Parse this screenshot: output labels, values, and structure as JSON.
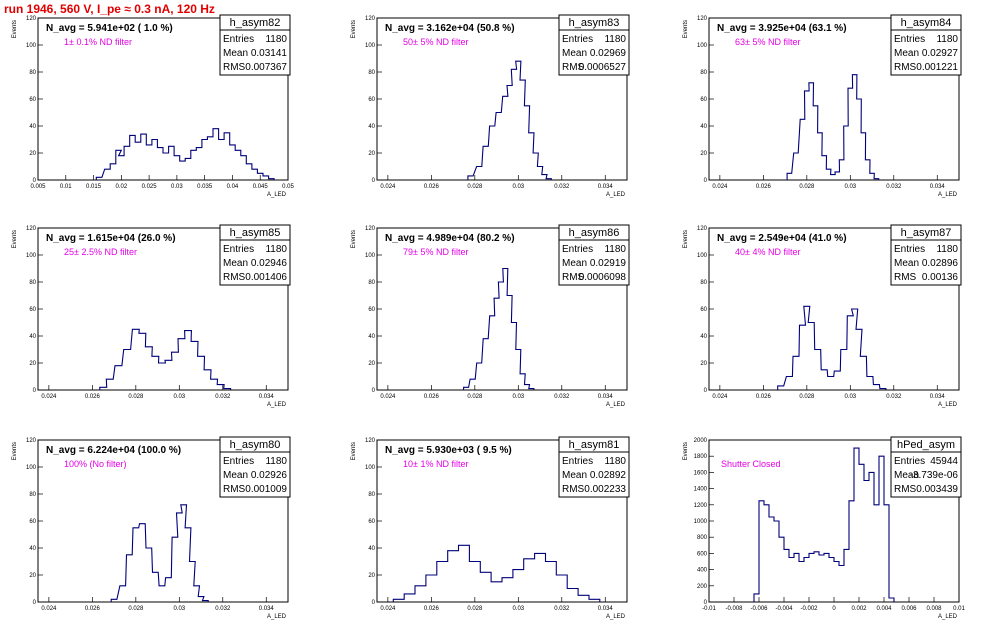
{
  "run_title": "run 1946,   560 V, I_pe ≈ 0.3 nA, 120 Hz",
  "ylabel": "Events",
  "xlabel": "A_LED",
  "stat_labels": {
    "entries": "Entries",
    "mean": "Mean",
    "rms": "RMS"
  },
  "chart_data": [
    {
      "type": "histogram",
      "name": "h_asym82",
      "headline": "N_avg = 5.941e+02 ( 1.0 %)",
      "filter": "1± 0.1% ND filter",
      "entries": "1180",
      "mean": "0.03141",
      "rms": "0.007367",
      "xlim": [
        0.005,
        0.05
      ],
      "ylim": [
        0,
        120
      ],
      "xticks": [
        "0.005",
        "0.01",
        "0.015",
        "0.02",
        "0.025",
        "0.03",
        "0.035",
        "0.04",
        "0.045",
        "0.05"
      ],
      "yticks": [
        "0",
        "20",
        "40",
        "60",
        "80",
        "100",
        "120"
      ],
      "x": [
        0.016,
        0.0175,
        0.0185,
        0.0195,
        0.02,
        0.021,
        0.022,
        0.023,
        0.024,
        0.025,
        0.026,
        0.027,
        0.028,
        0.029,
        0.03,
        0.031,
        0.032,
        0.033,
        0.034,
        0.035,
        0.036,
        0.037,
        0.038,
        0.039,
        0.04,
        0.041,
        0.042,
        0.043,
        0.044,
        0.045,
        0.046,
        0.047
      ],
      "values": [
        2,
        8,
        12,
        22,
        18,
        25,
        33,
        28,
        34,
        26,
        30,
        24,
        20,
        25,
        18,
        14,
        16,
        22,
        24,
        30,
        32,
        38,
        30,
        35,
        26,
        22,
        18,
        12,
        8,
        5,
        3,
        1
      ]
    },
    {
      "type": "histogram",
      "name": "h_asym83",
      "headline": "N_avg = 3.162e+04 (50.8 %)",
      "filter": "50± 5% ND filter",
      "entries": "1180",
      "mean": "0.02969",
      "rms": "0.0006527",
      "xlim": [
        0.0235,
        0.035
      ],
      "ylim": [
        0,
        120
      ],
      "xticks": [
        "0.024",
        "0.026",
        "0.028",
        "0.03",
        "0.032",
        "0.034"
      ],
      "yticks": [
        "0",
        "20",
        "40",
        "60",
        "80",
        "100",
        "120"
      ],
      "x": [
        0.0278,
        0.0282,
        0.0285,
        0.0288,
        0.0291,
        0.0294,
        0.0296,
        0.0298,
        0.03,
        0.0302,
        0.0304,
        0.0306,
        0.0308,
        0.031,
        0.0312,
        0.0314
      ],
      "values": [
        3,
        10,
        25,
        40,
        50,
        62,
        70,
        82,
        88,
        74,
        55,
        35,
        20,
        10,
        4,
        1
      ]
    },
    {
      "type": "histogram",
      "name": "h_asym84",
      "headline": "N_avg = 3.925e+04 (63.1 %)",
      "filter": "63± 5% ND filter",
      "entries": "1180",
      "mean": "0.02927",
      "rms": "0.001221",
      "xlim": [
        0.0235,
        0.035
      ],
      "ylim": [
        0,
        120
      ],
      "xticks": [
        "0.024",
        "0.026",
        "0.028",
        "0.03",
        "0.032",
        "0.034"
      ],
      "yticks": [
        "0",
        "20",
        "40",
        "60",
        "80",
        "100",
        "120"
      ],
      "x": [
        0.0272,
        0.0275,
        0.0278,
        0.028,
        0.0282,
        0.0284,
        0.0286,
        0.0288,
        0.029,
        0.0292,
        0.0294,
        0.0296,
        0.0298,
        0.03,
        0.0302,
        0.0304,
        0.0306,
        0.0308,
        0.031,
        0.0312
      ],
      "values": [
        5,
        20,
        45,
        66,
        72,
        55,
        35,
        18,
        8,
        4,
        6,
        15,
        40,
        68,
        78,
        60,
        35,
        15,
        5,
        1
      ]
    },
    {
      "type": "histogram",
      "name": "h_asym85",
      "headline": "N_avg = 1.615e+04 (26.0 %)",
      "filter": "25± 2.5% ND filter",
      "entries": "1180",
      "mean": "0.02946",
      "rms": "0.001406",
      "xlim": [
        0.0235,
        0.035
      ],
      "ylim": [
        0,
        120
      ],
      "xticks": [
        "0.024",
        "0.026",
        "0.028",
        "0.03",
        "0.032",
        "0.034"
      ],
      "yticks": [
        "0",
        "20",
        "40",
        "60",
        "80",
        "100",
        "120"
      ],
      "x": [
        0.0265,
        0.0268,
        0.0272,
        0.0276,
        0.028,
        0.0283,
        0.0286,
        0.0289,
        0.0292,
        0.0295,
        0.0298,
        0.0301,
        0.0304,
        0.0307,
        0.031,
        0.0313,
        0.0316,
        0.0319,
        0.0322
      ],
      "values": [
        2,
        8,
        18,
        30,
        45,
        42,
        32,
        25,
        20,
        22,
        28,
        38,
        44,
        36,
        25,
        15,
        8,
        4,
        1
      ]
    },
    {
      "type": "histogram",
      "name": "h_asym86",
      "headline": "N_avg = 4.989e+04 (80.2 %)",
      "filter": "79± 5% ND filter",
      "entries": "1180",
      "mean": "0.02919",
      "rms": "0.0006098",
      "xlim": [
        0.0235,
        0.035
      ],
      "ylim": [
        0,
        120
      ],
      "xticks": [
        "0.024",
        "0.026",
        "0.028",
        "0.03",
        "0.032",
        "0.034"
      ],
      "yticks": [
        "0",
        "20",
        "40",
        "60",
        "80",
        "100",
        "120"
      ],
      "x": [
        0.0276,
        0.0279,
        0.0282,
        0.0285,
        0.0288,
        0.029,
        0.0292,
        0.0294,
        0.0296,
        0.0298,
        0.03,
        0.0302,
        0.0304,
        0.0306
      ],
      "values": [
        2,
        8,
        20,
        38,
        55,
        68,
        80,
        90,
        70,
        50,
        30,
        12,
        4,
        1
      ]
    },
    {
      "type": "histogram",
      "name": "h_asym87",
      "headline": "N_avg = 2.549e+04 (41.0 %)",
      "filter": "40± 4% ND filter",
      "entries": "1180",
      "mean": "0.02896",
      "rms": "0.00136",
      "xlim": [
        0.0235,
        0.035
      ],
      "ylim": [
        0,
        120
      ],
      "xticks": [
        "0.024",
        "0.026",
        "0.028",
        "0.03",
        "0.032",
        "0.034"
      ],
      "yticks": [
        "0",
        "20",
        "40",
        "60",
        "80",
        "100",
        "120"
      ],
      "x": [
        0.0268,
        0.0272,
        0.0275,
        0.0278,
        0.028,
        0.0282,
        0.0285,
        0.0288,
        0.0291,
        0.0294,
        0.0297,
        0.03,
        0.0302,
        0.0304,
        0.0306,
        0.0309,
        0.0312,
        0.0315
      ],
      "values": [
        3,
        10,
        25,
        48,
        62,
        50,
        30,
        15,
        10,
        14,
        30,
        55,
        60,
        45,
        25,
        10,
        4,
        1
      ]
    },
    {
      "type": "histogram",
      "name": "h_asym80",
      "headline": "N_avg = 6.224e+04 (100.0 %)",
      "filter": "100% (No filter)",
      "entries": "1180",
      "mean": "0.02926",
      "rms": "0.001009",
      "xlim": [
        0.0235,
        0.035
      ],
      "ylim": [
        0,
        120
      ],
      "xticks": [
        "0.024",
        "0.026",
        "0.028",
        "0.03",
        "0.032",
        "0.034"
      ],
      "yticks": [
        "0",
        "20",
        "40",
        "60",
        "80",
        "100",
        "120"
      ],
      "x": [
        0.027,
        0.0274,
        0.0277,
        0.028,
        0.0283,
        0.0286,
        0.0289,
        0.0292,
        0.0295,
        0.0298,
        0.03,
        0.0302,
        0.0304,
        0.0306,
        0.0308,
        0.031,
        0.0312
      ],
      "values": [
        2,
        12,
        35,
        55,
        58,
        40,
        22,
        12,
        18,
        48,
        66,
        72,
        55,
        30,
        12,
        4,
        1
      ]
    },
    {
      "type": "histogram",
      "name": "h_asym81",
      "headline": "N_avg = 5.930e+03 ( 9.5 %)",
      "filter": "10± 1% ND filter",
      "entries": "1180",
      "mean": "0.02892",
      "rms": "0.002233",
      "xlim": [
        0.0235,
        0.035
      ],
      "ylim": [
        0,
        120
      ],
      "xticks": [
        "0.024",
        "0.026",
        "0.028",
        "0.03",
        "0.032",
        "0.034"
      ],
      "yticks": [
        "0",
        "20",
        "40",
        "60",
        "80",
        "100",
        "120"
      ],
      "x": [
        0.0245,
        0.025,
        0.0255,
        0.026,
        0.0265,
        0.027,
        0.0275,
        0.028,
        0.0285,
        0.029,
        0.0295,
        0.03,
        0.0305,
        0.031,
        0.0315,
        0.032,
        0.0325,
        0.033,
        0.0335
      ],
      "values": [
        2,
        6,
        12,
        20,
        30,
        38,
        42,
        30,
        22,
        15,
        18,
        24,
        32,
        36,
        30,
        20,
        10,
        5,
        2
      ]
    },
    {
      "type": "histogram",
      "name": "hPed_asym",
      "headline": "",
      "filter": "Shutter Closed",
      "entries": "45944",
      "mean": "-3.739e-06",
      "rms": "0.003439",
      "xlim": [
        -0.01,
        0.01
      ],
      "ylim": [
        0,
        2000
      ],
      "xticks": [
        "-0.01",
        "-0.008",
        "-0.006",
        "-0.004",
        "-0.002",
        "0",
        "0.002",
        "0.004",
        "0.006",
        "0.008",
        "0.01"
      ],
      "yticks": [
        "0",
        "200",
        "400",
        "600",
        "800",
        "1000",
        "1200",
        "1400",
        "1600",
        "1800",
        "2000"
      ],
      "x": [
        -0.0062,
        -0.0058,
        -0.0054,
        -0.005,
        -0.0046,
        -0.0042,
        -0.0038,
        -0.0034,
        -0.003,
        -0.0026,
        -0.0022,
        -0.0018,
        -0.0014,
        -0.001,
        -0.0006,
        -0.0002,
        0.0002,
        0.0006,
        0.001,
        0.0014,
        0.0018,
        0.0022,
        0.0026,
        0.003,
        0.0034,
        0.0038,
        0.0042,
        0.0046
      ],
      "values": [
        100,
        1250,
        1200,
        1050,
        1000,
        800,
        650,
        550,
        600,
        500,
        550,
        600,
        620,
        580,
        600,
        550,
        500,
        450,
        650,
        1250,
        1900,
        1700,
        1500,
        1600,
        1200,
        1800,
        1200,
        50
      ]
    }
  ]
}
